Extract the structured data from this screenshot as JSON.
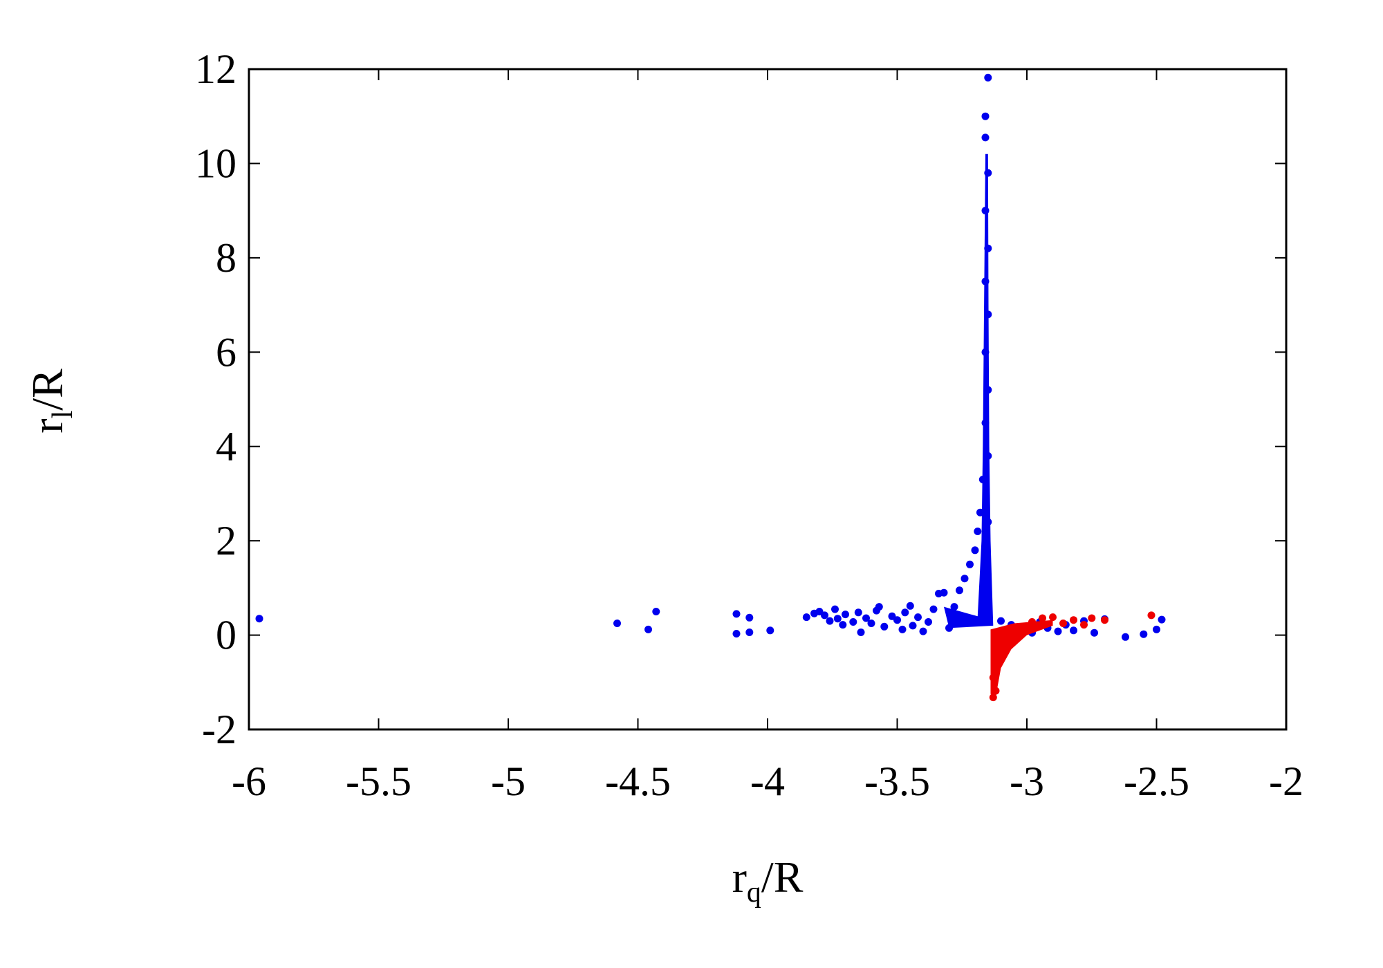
{
  "chart_data": {
    "type": "scatter",
    "title": "",
    "xlabel": {
      "base": "r",
      "sub": "q",
      "rest": "/R"
    },
    "ylabel": {
      "base": "r",
      "sub": "l",
      "rest": "/R"
    },
    "xlim": [
      -6,
      -2
    ],
    "ylim": [
      -2,
      12
    ],
    "x_ticks": [
      "-6",
      "-5.5",
      "-5",
      "-4.5",
      "-4",
      "-3.5",
      "-3",
      "-2.5",
      "-2"
    ],
    "y_ticks": [
      "-2",
      "0",
      "2",
      "4",
      "6",
      "8",
      "10",
      "12"
    ],
    "grid": false,
    "legend": "none",
    "series": [
      {
        "color": "#0000ee",
        "points": [
          [
            -5.96,
            0.35
          ],
          [
            -4.58,
            0.25
          ],
          [
            -4.46,
            0.12
          ],
          [
            -4.43,
            0.5
          ],
          [
            -4.12,
            0.45
          ],
          [
            -4.12,
            0.03
          ],
          [
            -4.07,
            0.37
          ],
          [
            -4.07,
            0.06
          ],
          [
            -3.99,
            0.1
          ],
          [
            -3.85,
            0.38
          ],
          [
            -3.82,
            0.46
          ],
          [
            -3.8,
            0.5
          ],
          [
            -3.78,
            0.42
          ],
          [
            -3.76,
            0.3
          ],
          [
            -3.74,
            0.55
          ],
          [
            -3.73,
            0.35
          ],
          [
            -3.71,
            0.22
          ],
          [
            -3.7,
            0.44
          ],
          [
            -3.67,
            0.28
          ],
          [
            -3.65,
            0.48
          ],
          [
            -3.64,
            0.06
          ],
          [
            -3.62,
            0.36
          ],
          [
            -3.6,
            0.25
          ],
          [
            -3.58,
            0.52
          ],
          [
            -3.57,
            0.6
          ],
          [
            -3.55,
            0.18
          ],
          [
            -3.52,
            0.4
          ],
          [
            -3.5,
            0.32
          ],
          [
            -3.48,
            0.12
          ],
          [
            -3.47,
            0.48
          ],
          [
            -3.45,
            0.62
          ],
          [
            -3.44,
            0.2
          ],
          [
            -3.42,
            0.38
          ],
          [
            -3.4,
            0.08
          ],
          [
            -3.38,
            0.28
          ],
          [
            -3.36,
            0.55
          ],
          [
            -3.34,
            0.88
          ],
          [
            -3.32,
            0.9
          ],
          [
            -3.3,
            0.15
          ],
          [
            -3.28,
            0.6
          ],
          [
            -3.26,
            0.95
          ],
          [
            -3.24,
            1.2
          ],
          [
            -3.22,
            1.5
          ],
          [
            -3.2,
            1.8
          ],
          [
            -3.19,
            2.2
          ],
          [
            -3.18,
            2.6
          ],
          [
            -3.17,
            3.3
          ],
          [
            -3.16,
            4.5
          ],
          [
            -3.16,
            6.0
          ],
          [
            -3.16,
            7.5
          ],
          [
            -3.16,
            9.0
          ],
          [
            -3.16,
            10.55
          ],
          [
            -3.16,
            11.0
          ],
          [
            -3.15,
            11.82
          ],
          [
            -3.15,
            9.8
          ],
          [
            -3.15,
            8.2
          ],
          [
            -3.15,
            6.8
          ],
          [
            -3.15,
            5.2
          ],
          [
            -3.15,
            3.8
          ],
          [
            -3.15,
            2.4
          ],
          [
            -3.1,
            0.3
          ],
          [
            -3.06,
            0.22
          ],
          [
            -3.02,
            0.12
          ],
          [
            -2.98,
            0.05
          ],
          [
            -2.95,
            0.28
          ],
          [
            -2.92,
            0.15
          ],
          [
            -2.88,
            0.08
          ],
          [
            -2.85,
            0.22
          ],
          [
            -2.82,
            0.1
          ],
          [
            -2.78,
            0.3
          ],
          [
            -2.74,
            0.05
          ],
          [
            -2.7,
            0.34
          ],
          [
            -2.62,
            -0.04
          ],
          [
            -2.55,
            0.02
          ],
          [
            -2.5,
            0.12
          ],
          [
            -2.48,
            0.33
          ]
        ]
      },
      {
        "color": "#ee0000",
        "points": [
          [
            -3.13,
            -1.32
          ],
          [
            -3.12,
            -1.18
          ],
          [
            -3.13,
            -0.9
          ],
          [
            -3.12,
            -0.62
          ],
          [
            -3.1,
            -0.42
          ],
          [
            -3.08,
            -0.22
          ],
          [
            -3.05,
            -0.05
          ],
          [
            -3.02,
            0.08
          ],
          [
            -2.98,
            0.28
          ],
          [
            -2.94,
            0.36
          ],
          [
            -2.9,
            0.38
          ],
          [
            -2.86,
            0.25
          ],
          [
            -2.82,
            0.32
          ],
          [
            -2.78,
            0.22
          ],
          [
            -2.75,
            0.36
          ],
          [
            -2.7,
            0.32
          ],
          [
            -2.52,
            0.42
          ]
        ]
      }
    ]
  }
}
